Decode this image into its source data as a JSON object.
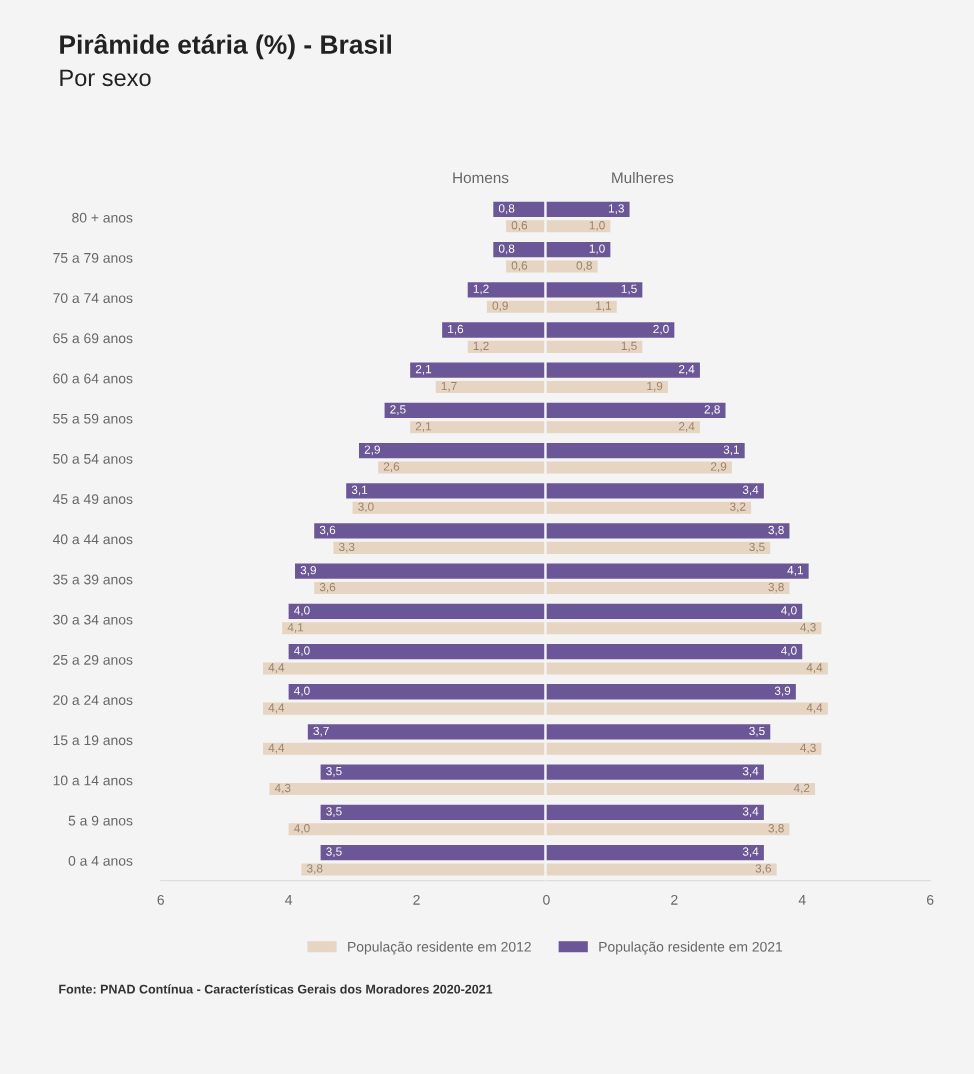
{
  "chart_data": [
    {
      "type": "bar",
      "orientation": "horizontal",
      "title": "Pirâmide etária (%) - Brasil",
      "subtitle": "Por sexo",
      "categories": [
        "80 + anos",
        "75 a 79 anos",
        "70 a 74 anos",
        "65 a 69 anos",
        "60 a 64 anos",
        "55 a 59 anos",
        "50 a 54 anos",
        "45 a 49 anos",
        "40 a 44 anos",
        "35 a 39 anos",
        "30 a 34 anos",
        "25 a 29 anos",
        "20 a 24 anos",
        "15 a 19 anos",
        "10 a 14 anos",
        "5 a 9 anos",
        "0 a 4 anos"
      ],
      "series": [
        {
          "color": "#6b5797",
          "values": [
            0.8,
            0.8,
            1.2,
            1.6,
            2.1,
            2.5,
            2.9,
            3.1,
            3.6,
            3.9,
            4.0,
            4.0,
            4.0,
            3.7,
            3.5,
            3.5,
            3.5
          ],
          "value_labels": [
            "0,8",
            "0,8",
            "1,2",
            "1,6",
            "2,1",
            "2,5",
            "2,9",
            "3,1",
            "3,6",
            "3,9",
            "4,0",
            "4,0",
            "4,0",
            "3,7",
            "3,5",
            "3,5",
            "3,5"
          ]
        },
        {
          "color": "#e6d5c3",
          "values": [
            0.6,
            0.6,
            0.9,
            1.2,
            1.7,
            2.1,
            2.6,
            3.0,
            3.3,
            3.6,
            4.1,
            4.4,
            4.4,
            4.4,
            4.3,
            4.0,
            3.8
          ],
          "value_labels": [
            "0,6",
            "0,6",
            "0,9",
            "1,2",
            "1,7",
            "2,1",
            "2,6",
            "3,0",
            "3,3",
            "3,6",
            "4,1",
            "4,4",
            "4,4",
            "4,4",
            "4,3",
            "4,0",
            "3,8"
          ]
        }
      ],
      "xlim": [
        6,
        0
      ],
      "xticks": [
        6,
        4,
        2
      ],
      "annotations": [
        "Homens"
      ]
    },
    {
      "type": "bar",
      "orientation": "horizontal",
      "series": [
        {
          "name": "População residente em 2021",
          "color": "#6b5797",
          "values": [
            1.3,
            1.0,
            1.5,
            2.0,
            2.4,
            2.8,
            3.1,
            3.4,
            3.8,
            4.1,
            4.0,
            4.0,
            3.9,
            3.5,
            3.4,
            3.4,
            3.4
          ],
          "value_labels": [
            "1,3",
            "1,0",
            "1,5",
            "2,0",
            "2,4",
            "2,8",
            "3,1",
            "3,4",
            "3,8",
            "4,1",
            "4,0",
            "4,0",
            "3,9",
            "3,5",
            "3,4",
            "3,4",
            "3,4"
          ]
        },
        {
          "name": "População residente em 2012",
          "color": "#e6d5c3",
          "values": [
            1.0,
            0.8,
            1.1,
            1.5,
            1.9,
            2.4,
            2.9,
            3.2,
            3.5,
            3.8,
            4.3,
            4.4,
            4.4,
            4.3,
            4.2,
            3.8,
            3.6
          ],
          "value_labels": [
            "1,0",
            "0,8",
            "1,1",
            "1,5",
            "1,9",
            "2,4",
            "2,9",
            "3,2",
            "3,5",
            "3,8",
            "4,3",
            "4,4",
            "4,4",
            "4,3",
            "4,2",
            "3,8",
            "3,6"
          ]
        }
      ],
      "xlim": [
        0,
        6
      ],
      "xticks": [
        0,
        2,
        4,
        6
      ],
      "tick_labels": "x",
      "legend": "bottom",
      "annotations": [
        "Mulheres",
        "Fonte: PNAD Contínua - Características Gerais dos Moradores 2020-2021"
      ]
    }
  ]
}
